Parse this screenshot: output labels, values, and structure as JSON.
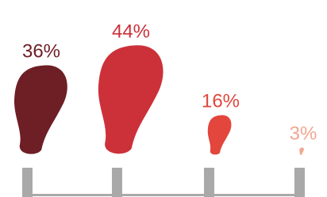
{
  "chart_data": {
    "type": "blob",
    "values": [
      36,
      44,
      16,
      3
    ],
    "value_labels": [
      "36%",
      "44%",
      "16%",
      "3%"
    ],
    "colors": [
      "#6e1e25",
      "#cc3139",
      "#e2463c",
      "#f2a68f"
    ]
  }
}
